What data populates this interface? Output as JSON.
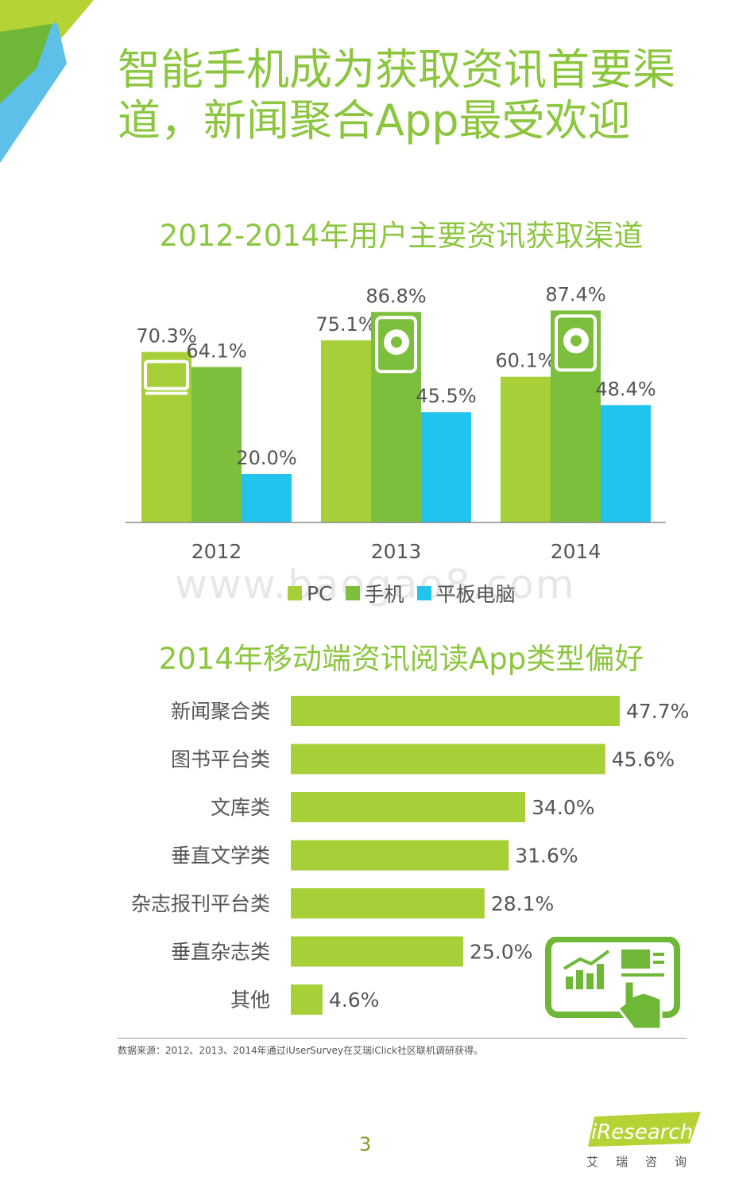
{
  "page": {
    "title": "智能手机成为获取资讯首要渠道，新闻聚合App最受欢迎",
    "watermark": "www.baogao8.com",
    "source": "数据来源：2012、2013、2014年通过iUserSurvey在艾瑞iClick社区联机调研获得。",
    "page_number": "3",
    "logo_text": "iResearch",
    "logo_cn": "艾瑞咨询",
    "colors": {
      "accent": "#8cc63f",
      "pc": "#a6cf38",
      "mobile": "#7cbf3c",
      "tablet": "#22c4ee"
    }
  },
  "chart_data": [
    {
      "type": "bar",
      "title": "2012-2014年用户主要资讯获取渠道",
      "categories": [
        "2012",
        "2013",
        "2014"
      ],
      "series": [
        {
          "name": "PC",
          "values": [
            70.3,
            75.1,
            60.1
          ],
          "labels": [
            "70.3%",
            "75.1%",
            "60.1%"
          ],
          "color": "#a6cf38"
        },
        {
          "name": "手机",
          "values": [
            64.1,
            86.8,
            87.4
          ],
          "labels": [
            "64.1%",
            "86.8%",
            "87.4%"
          ],
          "color": "#7cbf3c"
        },
        {
          "name": "平板电脑",
          "values": [
            20.0,
            45.5,
            48.4
          ],
          "labels": [
            "20.0%",
            "45.5%",
            "48.4%"
          ],
          "color": "#22c4ee"
        }
      ],
      "ylim": [
        0,
        100
      ],
      "legend": "bottom",
      "grid": false
    },
    {
      "type": "bar",
      "orientation": "horizontal",
      "title": "2014年移动端资讯阅读App类型偏好",
      "categories": [
        "新闻聚合类",
        "图书平台类",
        "文库类",
        "垂直文学类",
        "杂志报刊平台类",
        "垂直杂志类",
        "其他"
      ],
      "values": [
        47.7,
        45.6,
        34.0,
        31.6,
        28.1,
        25.0,
        4.6
      ],
      "labels": [
        "47.7%",
        "45.6%",
        "34.0%",
        "31.6%",
        "28.1%",
        "25.0%",
        "4.6%"
      ],
      "xlim": [
        0,
        50
      ],
      "color": "#a6cf38",
      "grid": false
    }
  ]
}
